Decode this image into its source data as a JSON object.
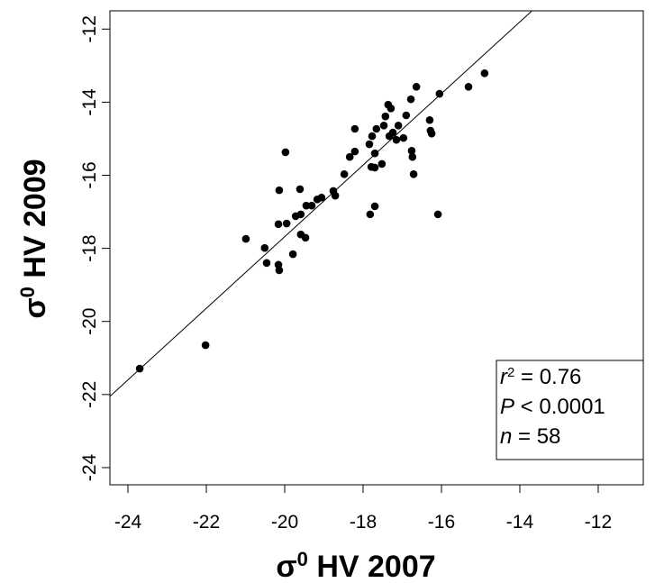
{
  "chart_data": {
    "type": "scatter",
    "xlabel": {
      "symbol": "σ",
      "sup": "0",
      "text": " HV 2007"
    },
    "ylabel": {
      "symbol": "σ",
      "sup": "0",
      "text": " HV 2009"
    },
    "xlim": [
      -24.46,
      -10.85
    ],
    "ylim": [
      -24.47,
      -11.5
    ],
    "xticks": [
      -24,
      -22,
      -20,
      -18,
      -16,
      -14,
      -12
    ],
    "yticks": [
      -24,
      -22,
      -20,
      -18,
      -16,
      -14,
      -12
    ],
    "color": "#000000",
    "x": [
      -23.7,
      -22.02,
      -20.99,
      -20.51,
      -20.46,
      -20.16,
      -20.14,
      -20.14,
      -20.16,
      -19.98,
      -19.95,
      -19.72,
      -19.79,
      -19.61,
      -19.59,
      -19.59,
      -19.45,
      -19.31,
      -19.17,
      -19.06,
      -19.47,
      -18.76,
      -18.71,
      -18.48,
      -18.34,
      -18.21,
      -18.21,
      -17.82,
      -17.7,
      -17.84,
      -17.77,
      -17.79,
      -17.7,
      -17.7,
      -17.66,
      -17.52,
      -17.47,
      -17.43,
      -17.36,
      -17.29,
      -17.33,
      -17.24,
      -17.15,
      -17.1,
      -16.97,
      -16.9,
      -16.78,
      -16.76,
      -16.74,
      -16.71,
      -16.64,
      -16.3,
      -16.28,
      -16.25,
      -16.05,
      -16.09,
      -15.31,
      -14.9
    ],
    "values": [
      -21.29,
      -20.65,
      -17.74,
      -17.99,
      -18.4,
      -18.45,
      -18.6,
      -16.41,
      -17.34,
      -15.37,
      -17.32,
      -17.12,
      -18.16,
      -16.38,
      -17.07,
      -17.62,
      -16.83,
      -16.83,
      -16.66,
      -16.61,
      -17.71,
      -16.43,
      -16.56,
      -15.97,
      -15.5,
      -15.35,
      -14.73,
      -17.07,
      -16.85,
      -15.15,
      -14.93,
      -15.77,
      -15.4,
      -15.79,
      -14.73,
      -15.69,
      -14.64,
      -14.39,
      -14.07,
      -14.17,
      -14.93,
      -14.83,
      -15.03,
      -14.64,
      -14.98,
      -14.36,
      -13.92,
      -15.33,
      -15.5,
      -15.97,
      -13.58,
      -14.49,
      -14.78,
      -14.86,
      -13.77,
      -17.07,
      -13.58,
      -13.21
    ],
    "fit_line": {
      "x": [
        -24.46,
        -13.7
      ],
      "y": [
        -22.05,
        -11.51
      ]
    },
    "annotation": [
      {
        "var": "r",
        "sup": "2",
        "text": " = 0.76"
      },
      {
        "var": "P",
        "text": " < 0.0001"
      },
      {
        "var": "n",
        "text": " = 58"
      }
    ]
  }
}
